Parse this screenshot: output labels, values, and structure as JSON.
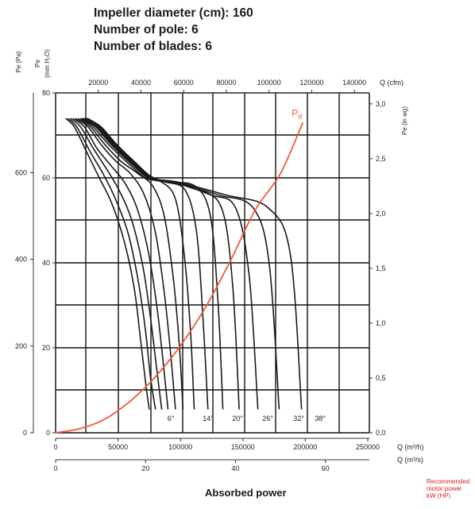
{
  "specs": {
    "diameter": "Impeller diameter (cm): 160",
    "poles": "Number of pole: 6",
    "blades": "Number of blades: 6"
  },
  "footer": {
    "title": "Absorbed power",
    "note_line1": "Recommended",
    "note_line2": "motor power",
    "note_line3": "kW (HP)"
  },
  "chart_data": {
    "type": "line",
    "colors": {
      "curves": "#1a1a1a",
      "pd": "#f05a3a",
      "grid": "#111111",
      "note": "#e02020"
    },
    "axes": {
      "left_outer": {
        "label": "Pe (Pa)",
        "range": [
          0,
          784
        ],
        "ticks": [
          0,
          200,
          400,
          600
        ]
      },
      "left_inner": {
        "label": "Pe (mm H2O)",
        "range": [
          0,
          80
        ],
        "ticks": [
          0,
          20,
          40,
          60,
          80
        ]
      },
      "right": {
        "label": "Pe (in wg)",
        "range": [
          0,
          3.1
        ],
        "ticks": [
          "0,0",
          "0,5",
          "1,0",
          "1,5",
          "2,0",
          "2,5",
          "3,0"
        ]
      },
      "top": {
        "label": "Q (cfm)",
        "range": [
          0,
          147000
        ],
        "ticks": [
          20000,
          40000,
          60000,
          80000,
          100000,
          120000,
          140000
        ]
      },
      "bottom1": {
        "label": "Q (m³/h)",
        "range": [
          0,
          250000
        ],
        "ticks": [
          0,
          50000,
          100000,
          150000,
          200000,
          250000
        ]
      },
      "bottom2": {
        "label": "Q (m³/s)",
        "range": [
          0,
          69.4
        ],
        "ticks": [
          0,
          20,
          40,
          60
        ]
      }
    },
    "ylim_mmH2O": [
      0,
      80
    ],
    "xlim_m3h": [
      0,
      250000
    ],
    "grid": true,
    "blade_angles": [
      "6°",
      "14°",
      "20°",
      "26°",
      "32°",
      "38°"
    ],
    "series_note": "13 fan curves (blade pitch angles), pressure in mm H2O vs flow in m³/h",
    "series": [
      {
        "points": [
          [
            8000,
            74
          ],
          [
            15000,
            72
          ],
          [
            25000,
            66
          ],
          [
            35000,
            60
          ],
          [
            45000,
            54
          ],
          [
            55000,
            45
          ],
          [
            63000,
            34
          ],
          [
            68000,
            22
          ],
          [
            72000,
            12
          ],
          [
            75000,
            5.5
          ]
        ]
      },
      {
        "points": [
          [
            10000,
            74
          ],
          [
            17000,
            72
          ],
          [
            28000,
            66
          ],
          [
            38000,
            61
          ],
          [
            48000,
            55
          ],
          [
            58000,
            47
          ],
          [
            66000,
            36
          ],
          [
            72000,
            24
          ],
          [
            76000,
            13
          ],
          [
            80000,
            5.5
          ]
        ]
      },
      {
        "points": [
          [
            12000,
            74
          ],
          [
            20000,
            72
          ],
          [
            30000,
            67
          ],
          [
            41000,
            62
          ],
          [
            51000,
            57
          ],
          [
            61000,
            50
          ],
          [
            70000,
            39
          ],
          [
            76000,
            27
          ],
          [
            81000,
            15
          ],
          [
            85000,
            5.5
          ]
        ]
      },
      {
        "points": [
          [
            14000,
            74
          ],
          [
            23000,
            72
          ],
          [
            33000,
            67
          ],
          [
            44000,
            63
          ],
          [
            55000,
            59
          ],
          [
            65000,
            53
          ],
          [
            74000,
            43
          ],
          [
            81000,
            30
          ],
          [
            86000,
            17
          ],
          [
            90000,
            5.5
          ]
        ]
      },
      {
        "points": [
          [
            16000,
            74
          ],
          [
            26000,
            72
          ],
          [
            36000,
            68
          ],
          [
            48000,
            64
          ],
          [
            60000,
            61
          ],
          [
            71000,
            56
          ],
          [
            80000,
            47
          ],
          [
            87000,
            33
          ],
          [
            92000,
            19
          ],
          [
            96000,
            5.5
          ]
        ]
      },
      {
        "points": [
          [
            18000,
            74
          ],
          [
            28000,
            72
          ],
          [
            39000,
            68
          ],
          [
            52000,
            64
          ],
          [
            66000,
            61
          ],
          [
            78000,
            58
          ],
          [
            87000,
            51
          ],
          [
            94000,
            37
          ],
          [
            99000,
            21
          ],
          [
            102000,
            5.5
          ]
        ]
      },
      {
        "points": [
          [
            20000,
            74
          ],
          [
            30000,
            72
          ],
          [
            42000,
            68
          ],
          [
            56000,
            64
          ],
          [
            72000,
            60
          ],
          [
            85000,
            59
          ],
          [
            96000,
            55
          ],
          [
            103000,
            42
          ],
          [
            108000,
            24
          ],
          [
            111000,
            5.5
          ]
        ]
      },
      {
        "points": [
          [
            21000,
            74
          ],
          [
            32000,
            72
          ],
          [
            44000,
            68
          ],
          [
            58000,
            64
          ],
          [
            74000,
            60
          ],
          [
            88000,
            59
          ],
          [
            104000,
            57
          ],
          [
            113000,
            47
          ],
          [
            118000,
            27
          ],
          [
            122000,
            5.5
          ]
        ]
      },
      {
        "points": [
          [
            22000,
            74
          ],
          [
            33000,
            72
          ],
          [
            45000,
            68
          ],
          [
            59000,
            64
          ],
          [
            75000,
            60
          ],
          [
            90000,
            59
          ],
          [
            112000,
            58
          ],
          [
            124000,
            51
          ],
          [
            130000,
            31
          ],
          [
            134000,
            5.5
          ]
        ]
      },
      {
        "points": [
          [
            23000,
            74
          ],
          [
            34000,
            72
          ],
          [
            46000,
            68
          ],
          [
            60000,
            64
          ],
          [
            76000,
            60
          ],
          [
            92000,
            59
          ],
          [
            118000,
            57
          ],
          [
            134000,
            52
          ],
          [
            142000,
            34
          ],
          [
            147000,
            5.5
          ]
        ]
      },
      {
        "points": [
          [
            24000,
            74
          ],
          [
            35000,
            72
          ],
          [
            47000,
            68
          ],
          [
            61000,
            64
          ],
          [
            77000,
            60
          ],
          [
            94000,
            59
          ],
          [
            124000,
            56
          ],
          [
            144000,
            53
          ],
          [
            155000,
            37
          ],
          [
            162000,
            5.5
          ]
        ]
      },
      {
        "points": [
          [
            25000,
            74
          ],
          [
            36000,
            72
          ],
          [
            48000,
            68
          ],
          [
            62000,
            64
          ],
          [
            78000,
            60
          ],
          [
            96000,
            59
          ],
          [
            130000,
            56
          ],
          [
            158000,
            53
          ],
          [
            171000,
            40
          ],
          [
            179000,
            5.5
          ]
        ]
      },
      {
        "points": [
          [
            25500,
            74
          ],
          [
            36500,
            72
          ],
          [
            48500,
            68
          ],
          [
            62500,
            64
          ],
          [
            78500,
            60
          ],
          [
            98000,
            59
          ],
          [
            136000,
            56
          ],
          [
            170000,
            53
          ],
          [
            188000,
            42
          ],
          [
            197000,
            5.5
          ]
        ]
      }
    ],
    "pd_curve": {
      "name": "Pd",
      "color": "#f05a3a",
      "points": [
        [
          0,
          0
        ],
        [
          20000,
          1
        ],
        [
          40000,
          3.3
        ],
        [
          60000,
          7.5
        ],
        [
          80000,
          13.2
        ],
        [
          100000,
          20.5
        ],
        [
          120000,
          29.5
        ],
        [
          140000,
          40.5
        ],
        [
          160000,
          52.5
        ],
        [
          180000,
          61
        ],
        [
          198000,
          73
        ]
      ]
    }
  }
}
